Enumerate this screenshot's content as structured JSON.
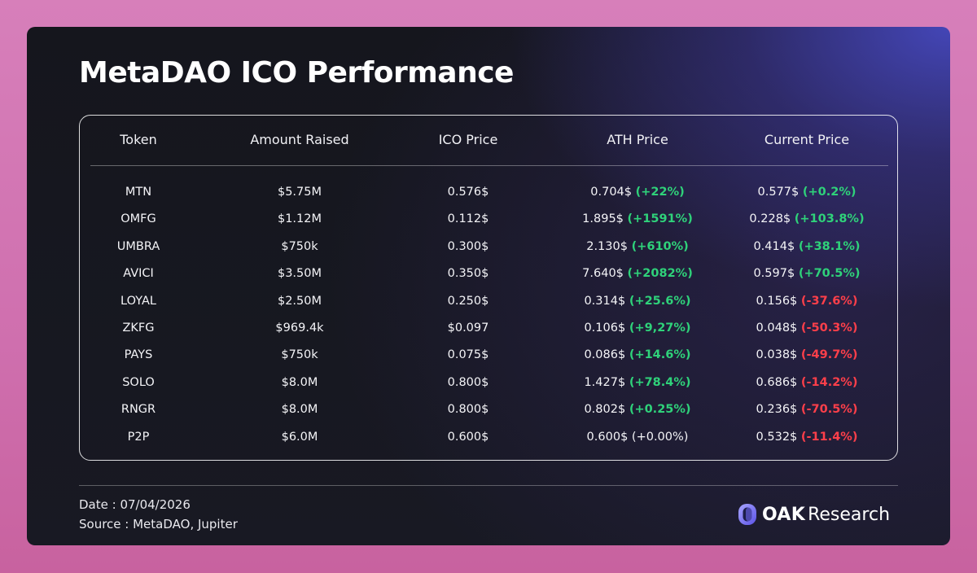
{
  "title": "MetaDAO ICO Performance",
  "colors": {
    "positive": "#2fd27a",
    "negative": "#ff3f4a",
    "border": "#ffffff"
  },
  "chart_data": {
    "type": "table",
    "columns": [
      "Token",
      "Amount Raised",
      "ICO Price",
      "ATH Price",
      "Current Price"
    ],
    "rows": [
      {
        "token": "MTN",
        "raised": "$5.75M",
        "ico": "0.576$",
        "ath": "0.704$",
        "ath_pct": "(+22%)",
        "ath_dir": "pos",
        "cur": "0.577$",
        "cur_pct": "(+0.2%)",
        "cur_dir": "pos"
      },
      {
        "token": "OMFG",
        "raised": "$1.12M",
        "ico": "0.112$",
        "ath": "1.895$",
        "ath_pct": "(+1591%)",
        "ath_dir": "pos",
        "cur": "0.228$",
        "cur_pct": "(+103.8%)",
        "cur_dir": "pos"
      },
      {
        "token": "UMBRA",
        "raised": "$750k",
        "ico": "0.300$",
        "ath": "2.130$",
        "ath_pct": "(+610%)",
        "ath_dir": "pos",
        "cur": "0.414$",
        "cur_pct": "(+38.1%)",
        "cur_dir": "pos"
      },
      {
        "token": "AVICI",
        "raised": "$3.50M",
        "ico": "0.350$",
        "ath": "7.640$",
        "ath_pct": "(+2082%)",
        "ath_dir": "pos",
        "cur": "0.597$",
        "cur_pct": "(+70.5%)",
        "cur_dir": "pos"
      },
      {
        "token": "LOYAL",
        "raised": "$2.50M",
        "ico": "0.250$",
        "ath": "0.314$",
        "ath_pct": "(+25.6%)",
        "ath_dir": "pos",
        "cur": "0.156$",
        "cur_pct": "(-37.6%)",
        "cur_dir": "neg"
      },
      {
        "token": "ZKFG",
        "raised": "$969.4k",
        "ico": "$0.097",
        "ath": "0.106$",
        "ath_pct": "(+9,27%)",
        "ath_dir": "pos",
        "cur": "0.048$",
        "cur_pct": "(-50.3%)",
        "cur_dir": "neg"
      },
      {
        "token": "PAYS",
        "raised": "$750k",
        "ico": "0.075$",
        "ath": "0.086$",
        "ath_pct": "(+14.6%)",
        "ath_dir": "pos",
        "cur": "0.038$",
        "cur_pct": "(-49.7%)",
        "cur_dir": "neg"
      },
      {
        "token": "SOLO",
        "raised": "$8.0M",
        "ico": "0.800$",
        "ath": "1.427$",
        "ath_pct": "(+78.4%)",
        "ath_dir": "pos",
        "cur": "0.686$",
        "cur_pct": "(-14.2%)",
        "cur_dir": "neg"
      },
      {
        "token": "RNGR",
        "raised": "$8.0M",
        "ico": "0.800$",
        "ath": "0.802$",
        "ath_pct": "(+0.25%)",
        "ath_dir": "pos",
        "cur": "0.236$",
        "cur_pct": "(-70.5%)",
        "cur_dir": "neg"
      },
      {
        "token": "P2P",
        "raised": "$6.0M",
        "ico": "0.600$",
        "ath": "0.600$",
        "ath_pct": "(+0.00%)",
        "ath_dir": "neu",
        "cur": "0.532$",
        "cur_pct": "(-11.4%)",
        "cur_dir": "neg"
      }
    ]
  },
  "footer": {
    "date": "Date : 07/04/2026",
    "source": "Source : MetaDAO, Jupiter",
    "logo_oak": "OAK",
    "logo_research": "Research",
    "logo_icon": "oak-research-logo-icon"
  }
}
